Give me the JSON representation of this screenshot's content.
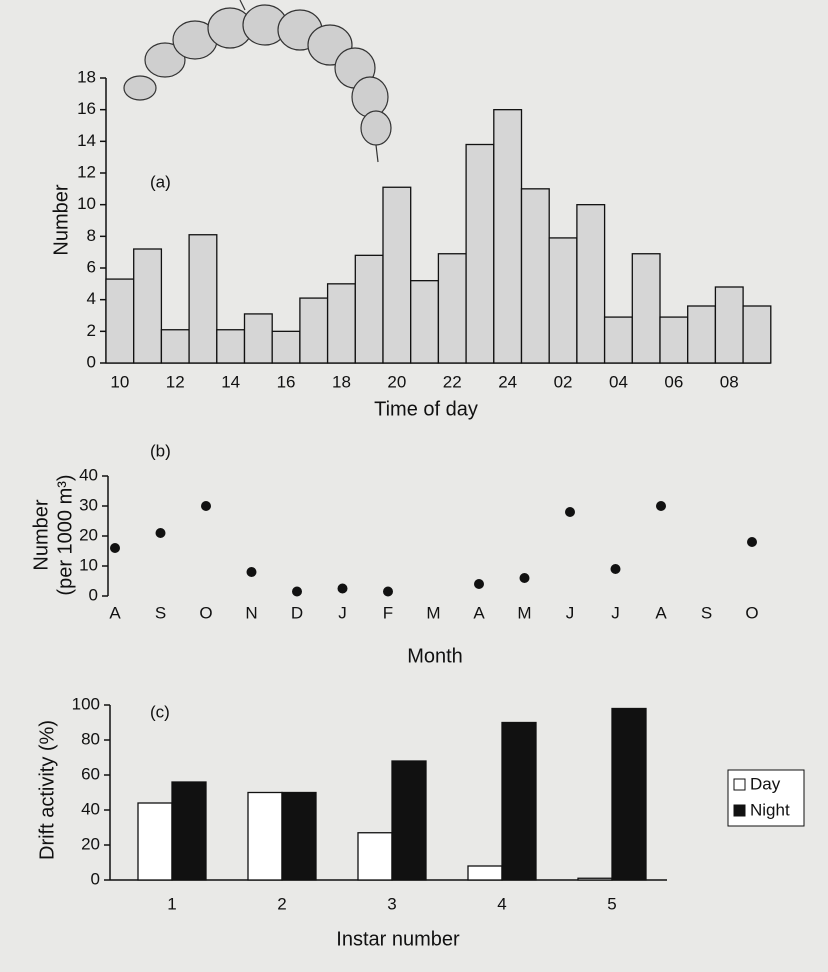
{
  "chart_data": [
    {
      "type": "bar",
      "panel_label": "(a)",
      "x_label": "Time of day",
      "y_label": "Number",
      "categories": [
        "10",
        null,
        "12",
        null,
        "14",
        null,
        "16",
        null,
        "18",
        null,
        "20",
        null,
        "22",
        null,
        "24",
        null,
        "02",
        null,
        "04",
        null,
        "06",
        null,
        "08",
        null
      ],
      "values": [
        5.3,
        7.2,
        2.1,
        8.1,
        2.1,
        3.1,
        2.0,
        4.1,
        5.0,
        6.8,
        11.1,
        5.2,
        6.9,
        13.8,
        16.0,
        11.0,
        7.9,
        10.0,
        2.9,
        6.9,
        2.9,
        3.6,
        4.8,
        3.6
      ],
      "color": "#d6d6d6",
      "ylim": [
        0,
        18
      ],
      "yticks": [
        0,
        2,
        4,
        6,
        8,
        10,
        12,
        14,
        16,
        18
      ]
    },
    {
      "type": "scatter",
      "panel_label": "(b)",
      "x_label": "Month",
      "y_label": [
        "Number",
        "(per 1000 m³)"
      ],
      "categories": [
        "A",
        "S",
        "O",
        "N",
        "D",
        "J",
        "F",
        "M",
        "A",
        "M",
        "J",
        "J",
        "A",
        "S",
        "O"
      ],
      "values": [
        16,
        21,
        30,
        8,
        1.5,
        2.5,
        1.5,
        null,
        4,
        6,
        28,
        9,
        30,
        null,
        18
      ],
      "color": "#111111",
      "ylim": [
        0,
        40
      ],
      "yticks": [
        0,
        10,
        20,
        30,
        40
      ]
    },
    {
      "type": "grouped_bar",
      "panel_label": "(c)",
      "x_label": "Instar number",
      "y_label": "Drift activity (%)",
      "categories": [
        "1",
        "2",
        "3",
        "4",
        "5"
      ],
      "series": [
        {
          "name": "Day",
          "color": "#ffffff",
          "values": [
            44,
            50,
            27,
            8,
            1
          ]
        },
        {
          "name": "Night",
          "color": "#111111",
          "values": [
            56,
            50,
            68,
            90,
            98
          ]
        }
      ],
      "ylim": [
        0,
        100
      ],
      "yticks": [
        0,
        20,
        40,
        60,
        80,
        100
      ],
      "legend": "right"
    }
  ]
}
